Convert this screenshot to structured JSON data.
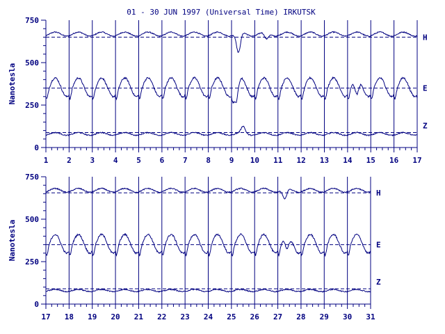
{
  "title": "01 - 30 JUN 1997 (Universal Time) IRKUTSK",
  "colors": {
    "ink": "#000080",
    "background": "#ffffff"
  },
  "chart_data": [
    {
      "type": "line",
      "panel": "top",
      "xlabel": "",
      "ylabel": "Nanotesla",
      "x_ticks": [
        1,
        2,
        3,
        4,
        5,
        6,
        7,
        8,
        9,
        10,
        11,
        12,
        13,
        14,
        15,
        16,
        17
      ],
      "xlim": [
        1,
        17
      ],
      "ylim": [
        0,
        750
      ],
      "y_ticks": [
        0,
        250,
        500,
        750
      ],
      "grid": "vertical lines at each day",
      "series": [
        {
          "name": "H",
          "baseline": 650,
          "mean": 668,
          "daily_amp": 15,
          "disturbances": [
            {
              "day": 9.3,
              "value": 550
            },
            {
              "day": 10.5,
              "value": 630
            }
          ]
        },
        {
          "name": "E",
          "baseline": 350,
          "mean": 355,
          "daily_amp": 55,
          "disturbances": [
            {
              "day": 9.2,
              "value": 250
            },
            {
              "day": 14.4,
              "value": 260
            }
          ]
        },
        {
          "name": "Z",
          "baseline": 88,
          "mean": 80,
          "daily_amp": 10,
          "disturbances": [
            {
              "day": 9.5,
              "value": 120
            }
          ]
        }
      ]
    },
    {
      "type": "line",
      "panel": "bottom",
      "xlabel": "",
      "ylabel": "Nanotesla",
      "x_ticks": [
        17,
        18,
        19,
        20,
        21,
        22,
        23,
        24,
        25,
        26,
        27,
        28,
        29,
        30,
        31
      ],
      "xlim": [
        17,
        31
      ],
      "ylim": [
        0,
        750
      ],
      "y_ticks": [
        0,
        250,
        500,
        750
      ],
      "grid": "vertical lines at each day",
      "series": [
        {
          "name": "H",
          "baseline": 655,
          "mean": 670,
          "daily_amp": 14,
          "disturbances": [
            {
              "day": 27.3,
              "value": 610
            }
          ]
        },
        {
          "name": "E",
          "baseline": 350,
          "mean": 355,
          "daily_amp": 55,
          "disturbances": [
            {
              "day": 27.4,
              "value": 270
            }
          ]
        },
        {
          "name": "Z",
          "baseline": 90,
          "mean": 80,
          "daily_amp": 8,
          "disturbances": []
        }
      ]
    }
  ]
}
